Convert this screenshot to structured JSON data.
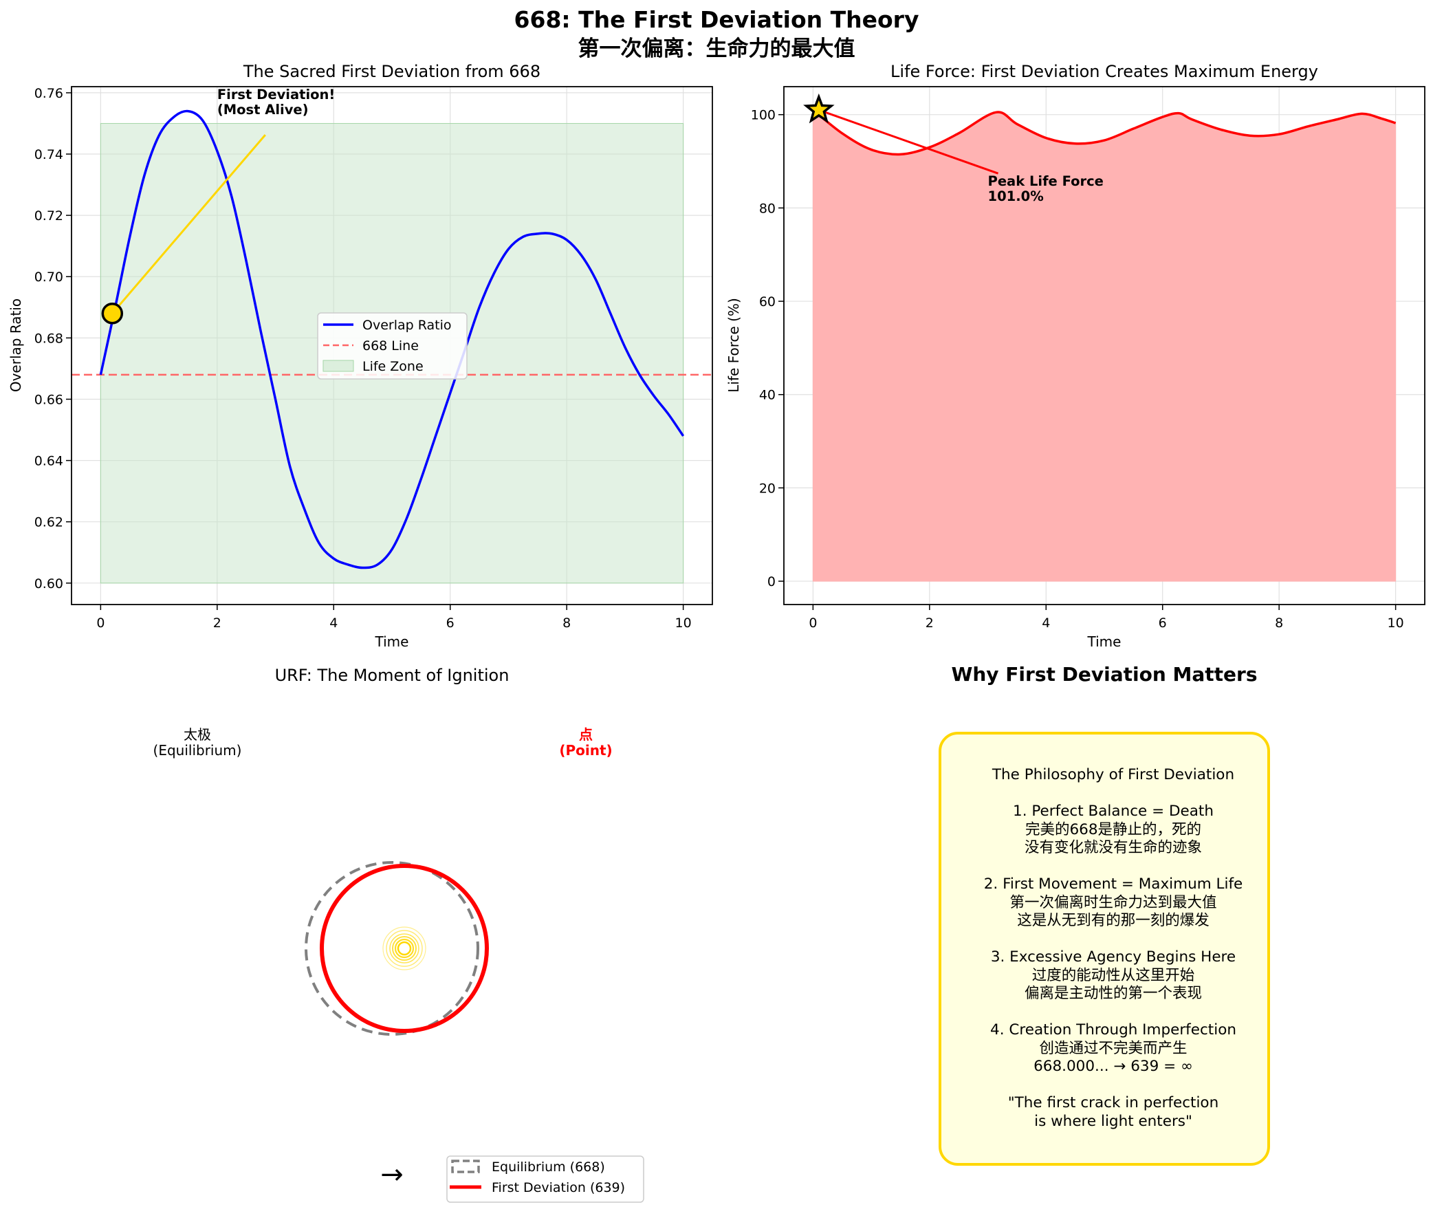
{
  "figure": {
    "title_line1": "668: The First Deviation Theory",
    "title_line2": "第一次偏离：生命力的最大值"
  },
  "chart_data": [
    {
      "type": "line",
      "title": "The Sacred First Deviation from 668",
      "xlabel": "Time",
      "ylabel": "Overlap Ratio",
      "xlim": [
        -0.5,
        10.5
      ],
      "ylim": [
        0.593,
        0.762
      ],
      "x_ticks": [
        "0",
        "2",
        "4",
        "6",
        "8",
        "10"
      ],
      "y_ticks": [
        "0.60",
        "0.62",
        "0.64",
        "0.66",
        "0.68",
        "0.70",
        "0.72",
        "0.74",
        "0.76"
      ],
      "grid": true,
      "legend_position": "center",
      "series": [
        {
          "name": "Overlap Ratio",
          "color": "#0000ff",
          "x": [
            0,
            0.25,
            0.5,
            0.75,
            1.0,
            1.25,
            1.5,
            1.75,
            2.0,
            2.25,
            2.5,
            2.75,
            3.0,
            3.25,
            3.5,
            3.75,
            4.0,
            4.25,
            4.5,
            4.75,
            5.0,
            5.25,
            5.5,
            5.75,
            6.0,
            6.25,
            6.5,
            6.75,
            7.0,
            7.25,
            7.5,
            7.75,
            8.0,
            8.25,
            8.5,
            8.75,
            9.0,
            9.25,
            9.5,
            9.75,
            10.0
          ],
          "y": [
            0.668,
            0.69,
            0.713,
            0.733,
            0.746,
            0.752,
            0.754,
            0.751,
            0.741,
            0.726,
            0.705,
            0.682,
            0.66,
            0.638,
            0.624,
            0.613,
            0.608,
            0.606,
            0.605,
            0.606,
            0.611,
            0.621,
            0.634,
            0.648,
            0.662,
            0.676,
            0.69,
            0.701,
            0.709,
            0.713,
            0.714,
            0.714,
            0.712,
            0.707,
            0.699,
            0.688,
            0.677,
            0.668,
            0.661,
            0.655,
            0.648
          ]
        },
        {
          "name": "668 Line",
          "color": "#ff6666",
          "style": "dashed",
          "y_value": 0.668
        },
        {
          "name": "Life Zone",
          "color": "#c8e6c9",
          "type": "band",
          "x_range": [
            0,
            10
          ],
          "y_range": [
            0.6,
            0.75
          ]
        }
      ],
      "marker": {
        "x": 0.2,
        "y": 0.688,
        "color": "#ffd700"
      },
      "annotation": {
        "text_line1": "First Deviation!",
        "text_line2": "(Most Alive)",
        "x": 2.0,
        "y": 0.753,
        "arrow_to_x": 0.2,
        "arrow_to_y": 0.688,
        "arrow_color": "#ffd700"
      }
    },
    {
      "type": "area",
      "title": "Life Force: First Deviation Creates Maximum Energy",
      "xlabel": "Time",
      "ylabel": "Life Force (%)",
      "xlim": [
        -0.5,
        10.5
      ],
      "ylim": [
        -5,
        106
      ],
      "x_ticks": [
        "0",
        "2",
        "4",
        "6",
        "8",
        "10"
      ],
      "y_ticks": [
        "0",
        "20",
        "40",
        "60",
        "80",
        "100"
      ],
      "grid": true,
      "series": [
        {
          "name": "Life Force",
          "color": "#ff0000",
          "fill_color": "#ffb3b3",
          "x": [
            0,
            0.5,
            1.0,
            1.5,
            2.0,
            2.5,
            3.14,
            3.5,
            4.0,
            4.5,
            5.0,
            5.5,
            6.0,
            6.28,
            6.5,
            7.0,
            7.5,
            8.0,
            8.5,
            9.0,
            9.42,
            9.75,
            10.0
          ],
          "y": [
            101.0,
            96.0,
            92.5,
            91.5,
            93.0,
            96.0,
            100.5,
            98.0,
            95.0,
            93.8,
            94.5,
            97.0,
            99.5,
            100.3,
            99.0,
            96.8,
            95.5,
            95.8,
            97.5,
            99.0,
            100.2,
            99.2,
            98.2
          ]
        }
      ],
      "marker": {
        "x": 0.1,
        "y": 101.0,
        "shape": "star",
        "color": "#ffd700"
      },
      "annotation": {
        "text_line1": "Peak Life Force",
        "text_line2": "101.0%",
        "x": 3.0,
        "y": 81.5,
        "arrow_to_x": 0.1,
        "arrow_to_y": 101.0,
        "arrow_color": "#ff0000"
      }
    }
  ],
  "urf_panel": {
    "title": "URF: The Moment of Ignition",
    "left_label_cn": "太极",
    "left_label_en": "(Equilibrium)",
    "right_label_cn": "点",
    "right_label_en": "(Point)",
    "right_label_color": "#ff0000",
    "arrow_symbol": "→",
    "legend": [
      {
        "name": "Equilibrium (668)",
        "color": "#808080",
        "style": "dashed"
      },
      {
        "name": "First Deviation (639)",
        "color": "#ff0000",
        "style": "solid"
      }
    ],
    "center_color": "#ffd700"
  },
  "philosophy_panel": {
    "title": "Why First Deviation Matters",
    "box_border_color": "#ffd700",
    "box_fill_color": "#ffffe0",
    "lines": [
      "The Philosophy of First Deviation",
      "",
      "1. Perfect Balance = Death",
      "完美的668是静止的，死的",
      "没有变化就没有生命的迹象",
      "",
      "2. First Movement = Maximum Life",
      "第一次偏离时生命力达到最大值",
      "这是从无到有的那一刻的爆发",
      "",
      "3. Excessive Agency Begins Here",
      "过度的能动性从这里开始",
      "偏离是主动性的第一个表现",
      "",
      "4. Creation Through Imperfection",
      "创造通过不完美而产生",
      "668.000... → 639 = ∞",
      "",
      "\"The first crack in perfection",
      "is where light enters\""
    ]
  }
}
